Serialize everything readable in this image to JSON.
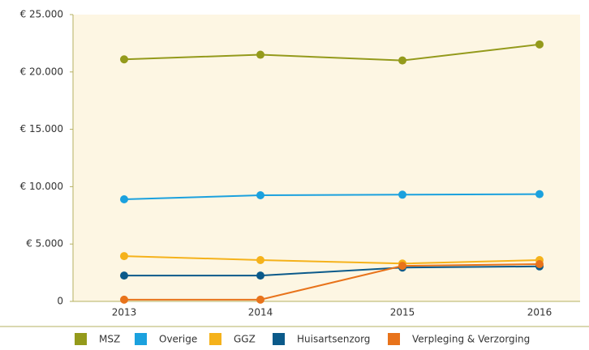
{
  "chart_data": {
    "type": "line",
    "categories": [
      "2013",
      "2014",
      "2015",
      "2016"
    ],
    "series": [
      {
        "name": "MSZ",
        "color": "#949a1b",
        "values": [
          21100,
          21500,
          21000,
          22400
        ]
      },
      {
        "name": "Overige",
        "color": "#1ba1de",
        "values": [
          8900,
          9250,
          9300,
          9350
        ]
      },
      {
        "name": "GGZ",
        "color": "#f5b21b",
        "values": [
          3950,
          3600,
          3300,
          3600
        ]
      },
      {
        "name": "Huisartsenzorg",
        "color": "#0b5a8a",
        "values": [
          2250,
          2250,
          2950,
          3050
        ]
      },
      {
        "name": "Verpleging & Verzorging",
        "color": "#e8731b",
        "values": [
          150,
          150,
          3100,
          3250
        ]
      }
    ],
    "ylim": [
      0,
      25000
    ],
    "yticks": [
      0,
      {
        "value": 5000,
        "label": "€ 5.000"
      },
      {
        "value": 10000,
        "label": "€ 10.000"
      },
      {
        "value": 15000,
        "label": "€ 15.000"
      },
      {
        "value": 20000,
        "label": "€ 20.000"
      },
      {
        "value": 25000,
        "label": "€ 25.000"
      }
    ],
    "grid": false,
    "legend": "bottom"
  }
}
